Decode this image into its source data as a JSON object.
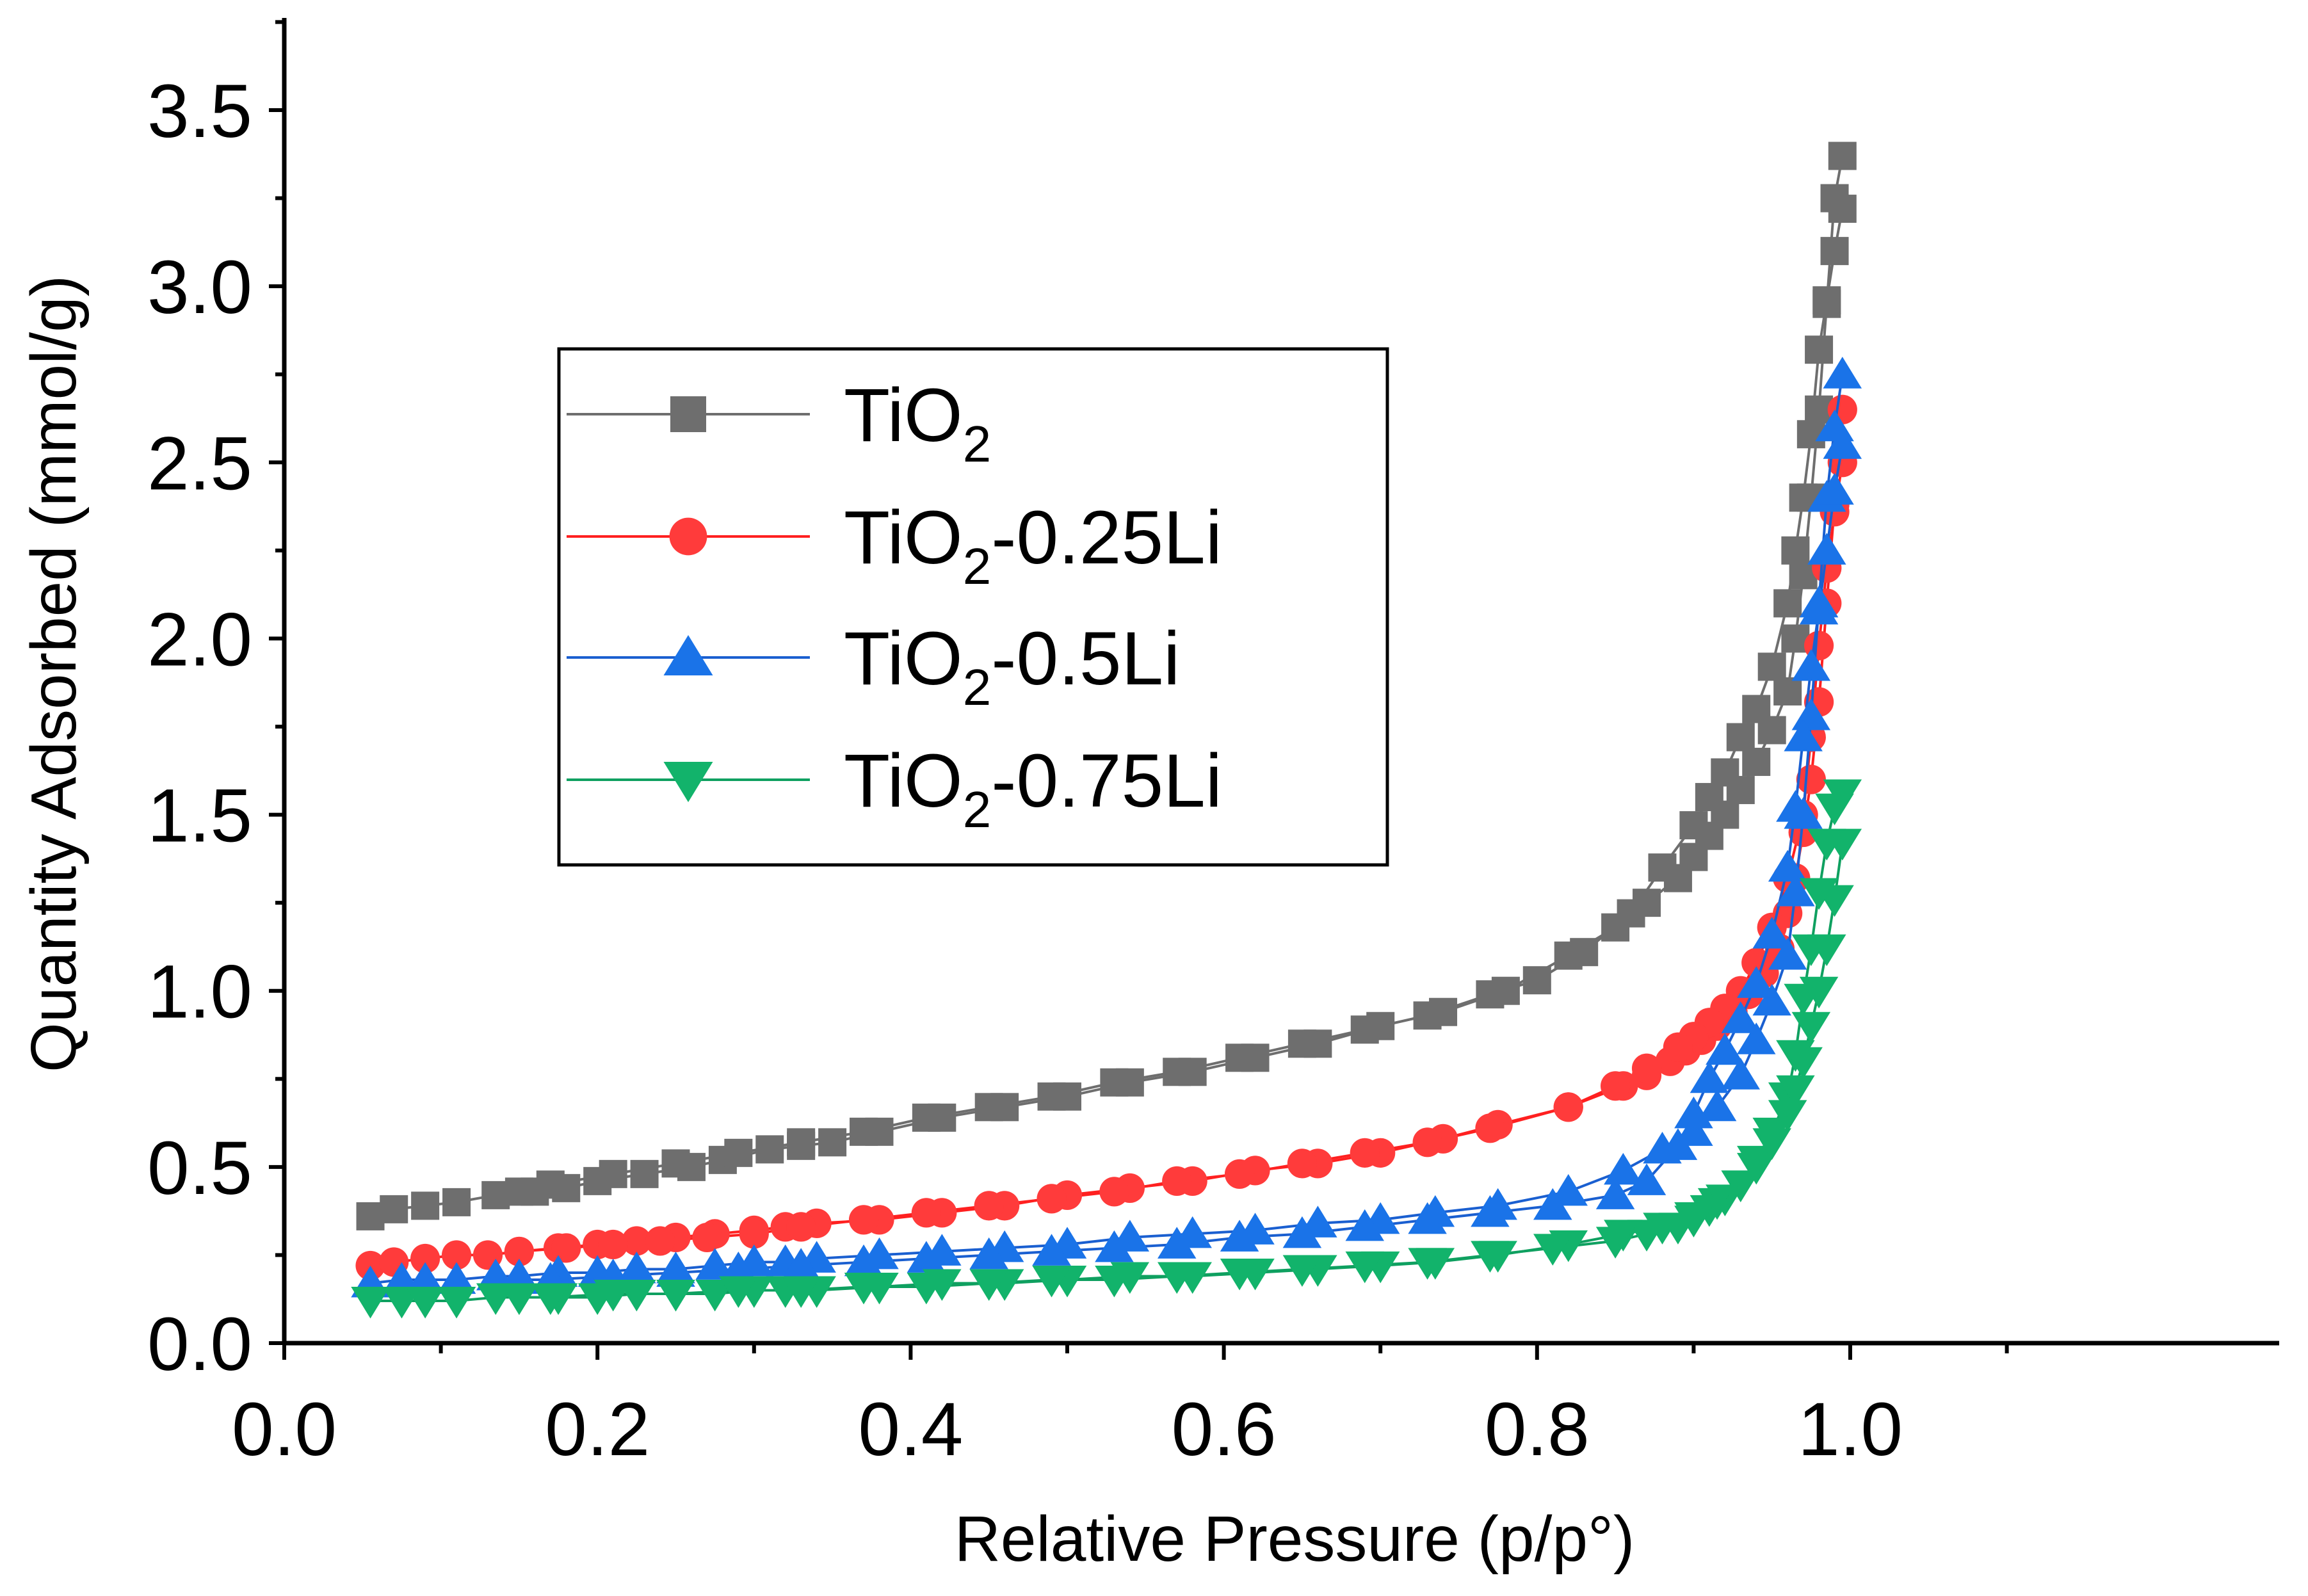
{
  "chart_data": {
    "type": "scatter",
    "xlabel": "Relative Pressure (p/p°)",
    "ylabel": "Quantity Adsorbed (mmol/g)",
    "xlim": [
      0.0,
      1.1
    ],
    "ylim": [
      0.0,
      3.75
    ],
    "xticks": [
      "0.0",
      "0.2",
      "0.4",
      "0.6",
      "0.8",
      "1.0"
    ],
    "yticks": [
      "0.0",
      "0.5",
      "1.0",
      "1.5",
      "2.0",
      "2.5",
      "3.0",
      "3.5"
    ],
    "grid": false,
    "legend_position": "upper-left",
    "series": [
      {
        "name": "TiO2",
        "label_main": "TiO",
        "label_sub": "2",
        "label_suffix": "",
        "marker": "square",
        "color": "#6e6e6e",
        "line_color": "#6e6e6e",
        "adsorption": {
          "x": [
            0.055,
            0.07,
            0.09,
            0.11,
            0.135,
            0.16,
            0.18,
            0.2,
            0.23,
            0.26,
            0.28,
            0.31,
            0.33,
            0.35,
            0.38,
            0.42,
            0.46,
            0.5,
            0.54,
            0.58,
            0.62,
            0.66,
            0.7,
            0.74,
            0.78,
            0.82,
            0.85,
            0.87,
            0.89,
            0.9,
            0.91,
            0.92,
            0.93,
            0.94,
            0.95,
            0.96,
            0.965,
            0.97,
            0.975,
            0.98,
            0.985,
            0.99,
            0.995
          ],
          "y": [
            0.36,
            0.38,
            0.39,
            0.4,
            0.42,
            0.43,
            0.44,
            0.46,
            0.48,
            0.5,
            0.52,
            0.55,
            0.56,
            0.57,
            0.6,
            0.64,
            0.67,
            0.7,
            0.74,
            0.77,
            0.81,
            0.85,
            0.9,
            0.94,
            1.0,
            1.1,
            1.18,
            1.25,
            1.32,
            1.38,
            1.44,
            1.5,
            1.57,
            1.65,
            1.74,
            1.85,
            2.0,
            2.18,
            2.4,
            2.65,
            2.95,
            3.25,
            3.37
          ]
        },
        "desorption": {
          "x": [
            0.995,
            0.99,
            0.985,
            0.98,
            0.975,
            0.97,
            0.965,
            0.96,
            0.95,
            0.94,
            0.93,
            0.92,
            0.91,
            0.9,
            0.88,
            0.86,
            0.83,
            0.8,
            0.77,
            0.73,
            0.69,
            0.65,
            0.61,
            0.57,
            0.53,
            0.49,
            0.45,
            0.41,
            0.37,
            0.33,
            0.29,
            0.25,
            0.21,
            0.17,
            0.15
          ],
          "y": [
            3.22,
            3.1,
            2.96,
            2.82,
            2.58,
            2.4,
            2.25,
            2.1,
            1.92,
            1.8,
            1.72,
            1.62,
            1.55,
            1.47,
            1.35,
            1.22,
            1.11,
            1.03,
            0.99,
            0.93,
            0.89,
            0.85,
            0.81,
            0.77,
            0.74,
            0.7,
            0.67,
            0.64,
            0.6,
            0.57,
            0.54,
            0.51,
            0.48,
            0.45,
            0.43
          ]
        }
      },
      {
        "name": "TiO2-0.25Li",
        "label_main": "TiO",
        "label_sub": "2",
        "label_suffix": "-0.25Li",
        "marker": "circle",
        "color": "#ff3b3b",
        "line_color": "#ff2020",
        "adsorption": {
          "x": [
            0.055,
            0.07,
            0.09,
            0.11,
            0.13,
            0.15,
            0.175,
            0.2,
            0.225,
            0.25,
            0.275,
            0.3,
            0.32,
            0.34,
            0.38,
            0.42,
            0.46,
            0.5,
            0.54,
            0.58,
            0.62,
            0.66,
            0.7,
            0.74,
            0.775,
            0.82,
            0.855,
            0.87,
            0.885,
            0.895,
            0.905,
            0.915,
            0.925,
            0.935,
            0.945,
            0.955,
            0.96,
            0.965,
            0.97,
            0.975,
            0.98,
            0.985,
            0.99,
            0.995
          ],
          "y": [
            0.22,
            0.23,
            0.24,
            0.25,
            0.25,
            0.26,
            0.27,
            0.28,
            0.29,
            0.3,
            0.31,
            0.32,
            0.33,
            0.34,
            0.35,
            0.37,
            0.39,
            0.42,
            0.44,
            0.46,
            0.49,
            0.51,
            0.54,
            0.58,
            0.62,
            0.67,
            0.73,
            0.76,
            0.8,
            0.83,
            0.86,
            0.9,
            0.94,
            0.99,
            1.05,
            1.12,
            1.22,
            1.32,
            1.45,
            1.6,
            1.82,
            2.1,
            2.38,
            2.65
          ]
        },
        "desorption": {
          "x": [
            0.995,
            0.99,
            0.985,
            0.98,
            0.975,
            0.97,
            0.96,
            0.95,
            0.94,
            0.93,
            0.92,
            0.91,
            0.9,
            0.89,
            0.87,
            0.85,
            0.82,
            0.77,
            0.73,
            0.69,
            0.65,
            0.61,
            0.57,
            0.53,
            0.49,
            0.45,
            0.41,
            0.37,
            0.33,
            0.3,
            0.27,
            0.24,
            0.21,
            0.18,
            0.15
          ],
          "y": [
            2.5,
            2.36,
            2.2,
            1.98,
            1.72,
            1.5,
            1.32,
            1.18,
            1.08,
            1.0,
            0.95,
            0.91,
            0.87,
            0.84,
            0.78,
            0.73,
            0.67,
            0.61,
            0.57,
            0.54,
            0.51,
            0.48,
            0.46,
            0.43,
            0.41,
            0.39,
            0.37,
            0.35,
            0.33,
            0.31,
            0.3,
            0.29,
            0.28,
            0.27,
            0.26
          ]
        }
      },
      {
        "name": "TiO2-0.5Li",
        "label_main": "TiO",
        "label_sub": "2",
        "label_suffix": "-0.5Li",
        "marker": "triangle-up",
        "color": "#1a73e8",
        "line_color": "#1a5fd0",
        "adsorption": {
          "x": [
            0.055,
            0.075,
            0.09,
            0.11,
            0.135,
            0.15,
            0.175,
            0.2,
            0.225,
            0.25,
            0.275,
            0.3,
            0.32,
            0.34,
            0.38,
            0.42,
            0.46,
            0.5,
            0.54,
            0.58,
            0.62,
            0.66,
            0.7,
            0.735,
            0.775,
            0.82,
            0.855,
            0.88,
            0.9,
            0.915,
            0.93,
            0.94,
            0.95,
            0.96,
            0.965,
            0.97,
            0.975,
            0.98,
            0.985,
            0.99,
            0.995
          ],
          "y": [
            0.17,
            0.18,
            0.18,
            0.18,
            0.19,
            0.19,
            0.2,
            0.2,
            0.21,
            0.21,
            0.22,
            0.23,
            0.23,
            0.24,
            0.25,
            0.26,
            0.27,
            0.28,
            0.3,
            0.31,
            0.32,
            0.34,
            0.35,
            0.37,
            0.39,
            0.43,
            0.49,
            0.55,
            0.6,
            0.67,
            0.76,
            0.86,
            0.97,
            1.1,
            1.28,
            1.5,
            1.78,
            2.1,
            2.4,
            2.6,
            2.75
          ]
        },
        "desorption": {
          "x": [
            0.995,
            0.99,
            0.985,
            0.98,
            0.975,
            0.97,
            0.965,
            0.96,
            0.95,
            0.94,
            0.93,
            0.92,
            0.91,
            0.9,
            0.89,
            0.87,
            0.85,
            0.81,
            0.77,
            0.73,
            0.69,
            0.65,
            0.61,
            0.57,
            0.53,
            0.49,
            0.45,
            0.41,
            0.37,
            0.33,
            0.29,
            0.25,
            0.21,
            0.17,
            0.15
          ],
          "y": [
            2.55,
            2.42,
            2.25,
            2.08,
            1.92,
            1.72,
            1.52,
            1.35,
            1.16,
            1.02,
            0.92,
            0.83,
            0.75,
            0.65,
            0.56,
            0.46,
            0.42,
            0.39,
            0.37,
            0.35,
            0.33,
            0.31,
            0.3,
            0.28,
            0.27,
            0.26,
            0.25,
            0.24,
            0.23,
            0.22,
            0.21,
            0.2,
            0.19,
            0.18,
            0.18
          ]
        }
      },
      {
        "name": "TiO2-0.75Li",
        "label_main": "TiO",
        "label_sub": "2",
        "label_suffix": "-0.75Li",
        "marker": "triangle-down",
        "color": "#12b36b",
        "line_color": "#0fa060",
        "adsorption": {
          "x": [
            0.055,
            0.075,
            0.09,
            0.11,
            0.135,
            0.15,
            0.175,
            0.2,
            0.225,
            0.25,
            0.275,
            0.3,
            0.32,
            0.34,
            0.38,
            0.42,
            0.46,
            0.5,
            0.54,
            0.58,
            0.62,
            0.66,
            0.7,
            0.735,
            0.775,
            0.82,
            0.855,
            0.88,
            0.9,
            0.915,
            0.93,
            0.94,
            0.95,
            0.96,
            0.965,
            0.97,
            0.975,
            0.98,
            0.985,
            0.99,
            0.995
          ],
          "y": [
            0.12,
            0.12,
            0.12,
            0.12,
            0.13,
            0.13,
            0.13,
            0.13,
            0.14,
            0.14,
            0.14,
            0.15,
            0.15,
            0.15,
            0.16,
            0.17,
            0.17,
            0.18,
            0.19,
            0.19,
            0.2,
            0.21,
            0.22,
            0.23,
            0.25,
            0.28,
            0.31,
            0.33,
            0.36,
            0.4,
            0.45,
            0.52,
            0.6,
            0.7,
            0.82,
            0.98,
            1.12,
            1.28,
            1.42,
            1.52,
            1.56
          ]
        },
        "desorption": {
          "x": [
            0.995,
            0.99,
            0.985,
            0.98,
            0.975,
            0.97,
            0.965,
            0.96,
            0.95,
            0.94,
            0.93,
            0.92,
            0.91,
            0.9,
            0.89,
            0.87,
            0.85,
            0.81,
            0.77,
            0.73,
            0.69,
            0.65,
            0.61,
            0.57,
            0.53,
            0.49,
            0.45,
            0.41,
            0.37,
            0.33,
            0.29,
            0.25,
            0.21,
            0.17,
            0.15
          ],
          "y": [
            1.42,
            1.26,
            1.12,
            1.0,
            0.9,
            0.8,
            0.72,
            0.65,
            0.57,
            0.5,
            0.45,
            0.41,
            0.38,
            0.35,
            0.33,
            0.31,
            0.29,
            0.27,
            0.25,
            0.23,
            0.22,
            0.21,
            0.2,
            0.19,
            0.18,
            0.18,
            0.17,
            0.16,
            0.16,
            0.15,
            0.15,
            0.14,
            0.14,
            0.13,
            0.13
          ]
        }
      }
    ]
  }
}
